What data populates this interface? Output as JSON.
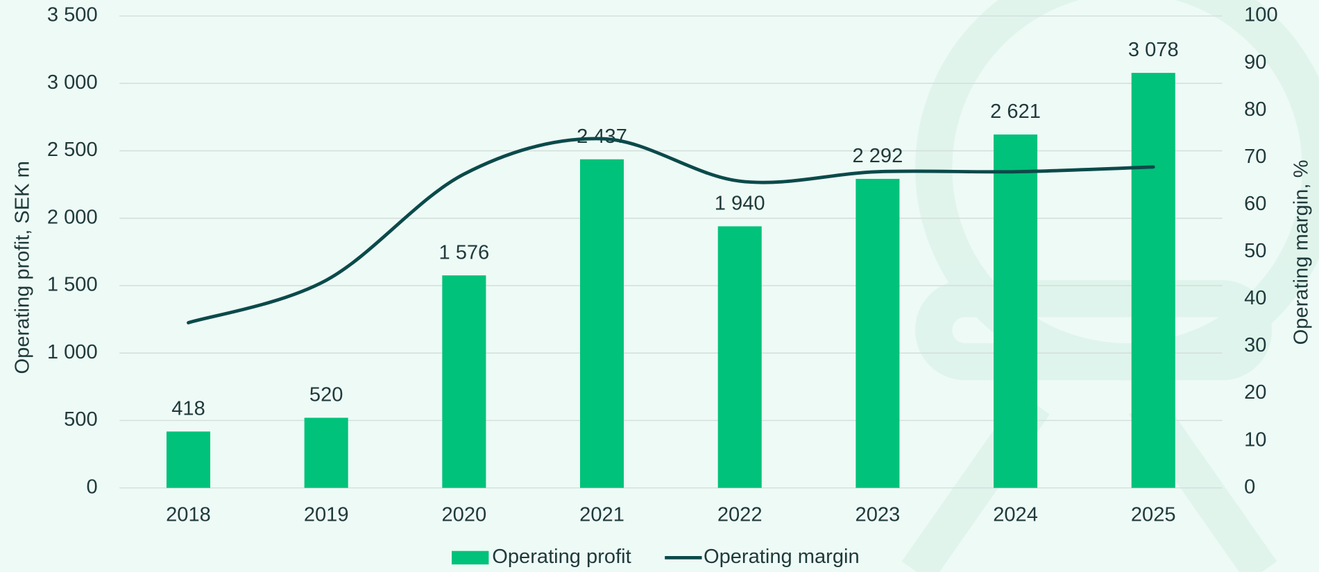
{
  "chart_data": {
    "type": "bar_line",
    "categories": [
      "2018",
      "2019",
      "2020",
      "2021",
      "2022",
      "2023",
      "2024",
      "2025"
    ],
    "series": [
      {
        "name": "Operating profit",
        "color": "#00c27a",
        "type": "bar",
        "values": [
          418,
          520,
          1576,
          2437,
          1940,
          2292,
          2621,
          3078
        ],
        "value_labels": [
          "418",
          "520",
          "1 576",
          "2 437",
          "1 940",
          "2 292",
          "2 621",
          "3 078"
        ]
      },
      {
        "name": "Operating margin",
        "color": "#0b4a4a",
        "type": "line",
        "axis": "y2",
        "values": [
          35,
          44,
          66.5,
          74,
          65,
          67,
          67,
          68
        ]
      }
    ],
    "ylabel": "Operating profit, SEK m",
    "y2label": "Operating margin, %",
    "ylim": [
      0,
      3500
    ],
    "yticks": [
      0,
      500,
      {
        "value": 1000,
        "label": "1 000"
      },
      {
        "value": 1500,
        "label": "1 500"
      },
      {
        "value": 2000,
        "label": "2 000"
      },
      {
        "value": 2500,
        "label": "2 500"
      },
      {
        "value": 3000,
        "label": "3 000"
      },
      {
        "value": 3500,
        "label": "3 500"
      }
    ],
    "y2lim": [
      0,
      100
    ],
    "y2ticks": [
      0,
      10,
      20,
      30,
      40,
      50,
      60,
      70,
      80,
      90,
      100
    ],
    "grid": true,
    "legend": "bottom"
  }
}
